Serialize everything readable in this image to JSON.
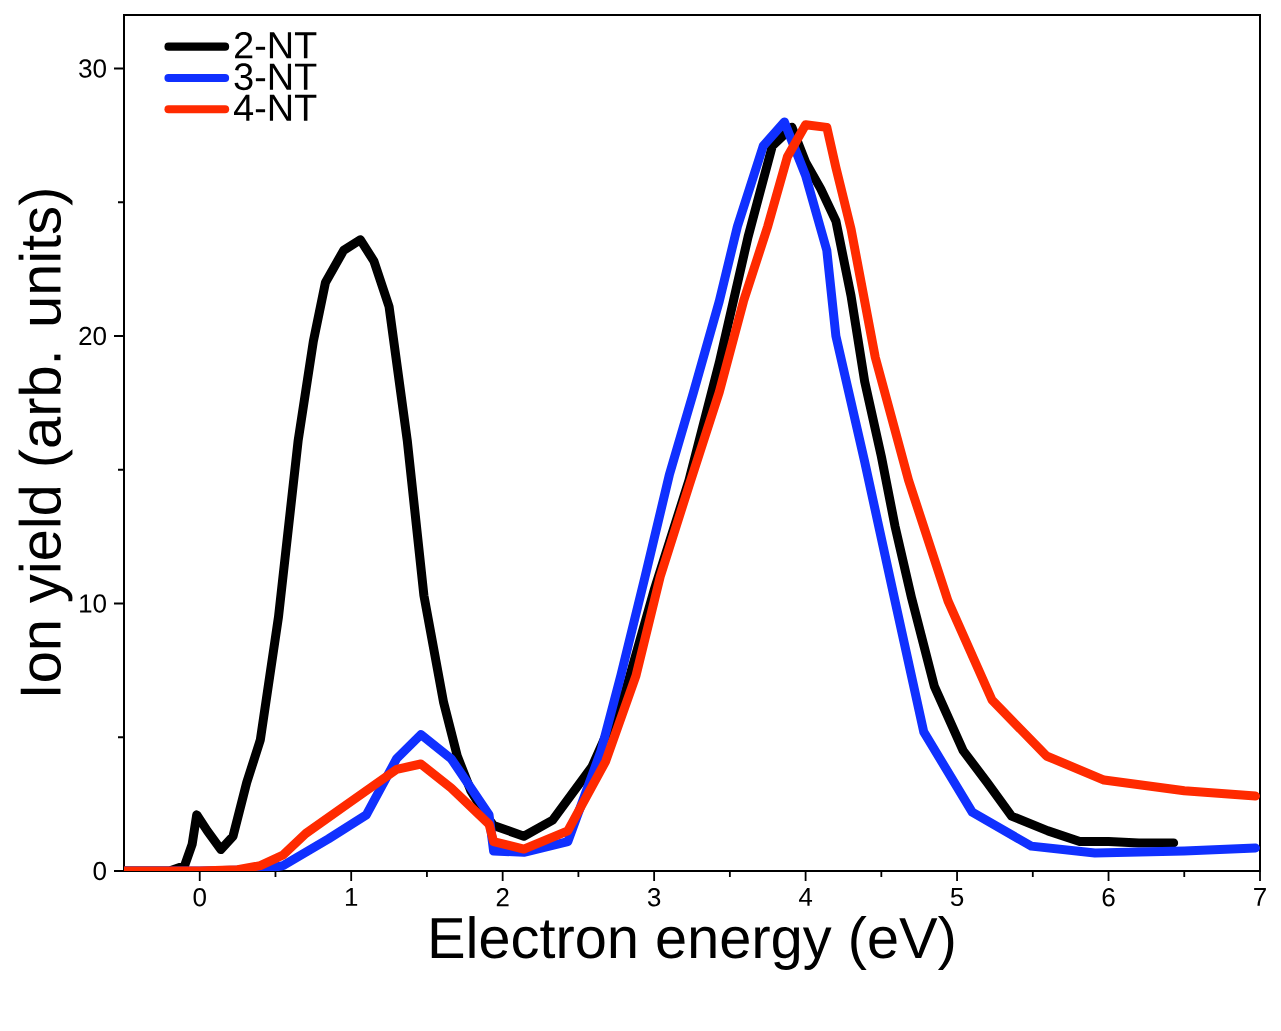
{
  "chart_data": {
    "type": "line",
    "xlabel": "Electron energy (eV)",
    "ylabel": "Ion yield (arb. units)",
    "xlim": [
      -0.5,
      7
    ],
    "ylim": [
      0,
      32
    ],
    "xticks": [
      0,
      1,
      2,
      3,
      4,
      5,
      6,
      7
    ],
    "yticks": [
      0,
      10,
      20,
      30
    ],
    "grid": false,
    "legend": "top left",
    "marker": "none",
    "line_style": "solid",
    "series": [
      {
        "name": "2-NT",
        "color": "#000000",
        "x": [
          -0.5,
          -0.2,
          -0.1,
          -0.05,
          -0.02,
          0.05,
          0.14,
          0.22,
          0.31,
          0.4,
          0.52,
          0.65,
          0.75,
          0.83,
          0.95,
          1.06,
          1.15,
          1.25,
          1.37,
          1.48,
          1.61,
          1.7,
          1.79,
          1.9,
          1.94,
          2.14,
          2.33,
          2.59,
          2.81,
          3.0,
          3.23,
          3.43,
          3.62,
          3.78,
          3.91,
          4.0,
          4.1,
          4.2,
          4.3,
          4.39,
          4.5,
          4.59,
          4.7,
          4.85,
          5.04,
          5.2,
          5.36,
          5.6,
          5.81,
          6.0,
          6.2,
          6.43
        ],
        "values": [
          0,
          0,
          0.2,
          1.0,
          2.1,
          1.5,
          0.8,
          1.3,
          3.3,
          4.9,
          9.5,
          16.1,
          19.8,
          22,
          23.2,
          23.6,
          22.8,
          21.1,
          16.1,
          10.3,
          6.3,
          4.3,
          3.0,
          2.0,
          1.7,
          1.3,
          1.9,
          3.9,
          6.7,
          10.5,
          14.6,
          19,
          23.7,
          27.1,
          27.8,
          26.5,
          25.5,
          24.3,
          21.5,
          18.3,
          15.5,
          12.9,
          10.2,
          6.9,
          4.5,
          3.3,
          2.05,
          1.5,
          1.1,
          1.1,
          1.05,
          1.05
        ]
      },
      {
        "name": "3-NT",
        "color": "#1030ff",
        "x": [
          -0.5,
          0.0,
          0.4,
          0.55,
          0.7,
          0.85,
          1.1,
          1.3,
          1.46,
          1.66,
          1.91,
          1.94,
          2.14,
          2.43,
          2.65,
          2.78,
          2.94,
          3.1,
          3.26,
          3.43,
          3.55,
          3.72,
          3.86,
          4.0,
          4.14,
          4.2,
          4.39,
          4.59,
          4.78,
          5.1,
          5.49,
          5.91,
          6.5,
          6.97
        ],
        "values": [
          0,
          0,
          0.05,
          0.2,
          0.7,
          1.2,
          2.1,
          4.2,
          5.1,
          4.2,
          2.1,
          0.75,
          0.7,
          1.1,
          4.5,
          7.3,
          11,
          14.8,
          17.9,
          21.3,
          24.1,
          27.1,
          28.0,
          26.0,
          23.2,
          20,
          15.3,
          10.1,
          5.2,
          2.2,
          0.93,
          0.67,
          0.75,
          0.86
        ]
      },
      {
        "name": "4-NT",
        "color": "#ff2a00",
        "x": [
          -0.5,
          0.0,
          0.25,
          0.4,
          0.55,
          0.7,
          1.0,
          1.3,
          1.46,
          1.66,
          1.91,
          1.94,
          2.14,
          2.43,
          2.68,
          2.88,
          3.04,
          3.23,
          3.43,
          3.59,
          3.75,
          3.88,
          4.0,
          4.14,
          4.2,
          4.3,
          4.46,
          4.68,
          4.94,
          5.23,
          5.59,
          5.97,
          6.5,
          6.97
        ],
        "values": [
          0,
          0,
          0.05,
          0.2,
          0.6,
          1.4,
          2.6,
          3.8,
          4.0,
          3.1,
          1.75,
          1.1,
          0.82,
          1.5,
          4.1,
          7.3,
          11,
          14.4,
          17.9,
          21.3,
          24.1,
          26.7,
          27.9,
          27.8,
          26.3,
          24,
          19.2,
          14.6,
          10.1,
          6.4,
          4.3,
          3.4,
          3.0,
          2.8
        ]
      }
    ]
  }
}
